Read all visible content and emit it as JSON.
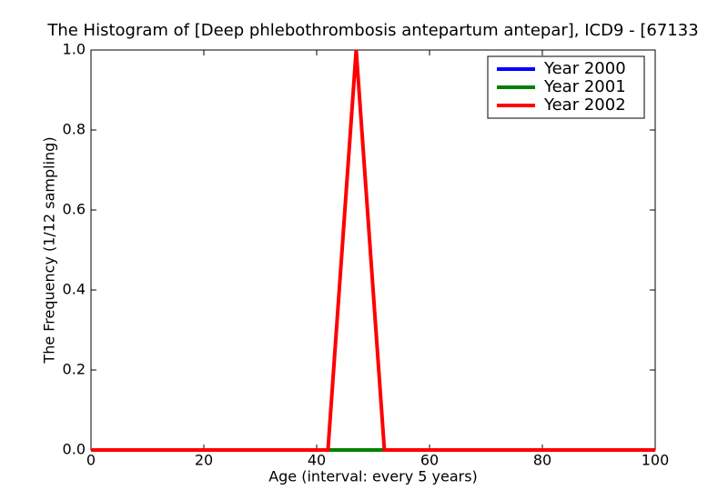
{
  "chart_data": {
    "type": "line",
    "title": "The Histogram of [Deep phlebothrombosis antepartum antepar], ICD9 - [67133",
    "xlabel": "Age (interval: every 5 years)",
    "ylabel": "The Frequency (1/12 sampling)",
    "x": [
      0,
      42,
      47,
      52,
      100
    ],
    "series": [
      {
        "name": "Year 2000",
        "color": "#0000ff",
        "values": [
          0,
          0,
          0,
          0,
          0
        ]
      },
      {
        "name": "Year 2001",
        "color": "#008000",
        "values": [
          0,
          0,
          0,
          0,
          0
        ]
      },
      {
        "name": "Year 2002",
        "color": "#ff0000",
        "values": [
          0,
          0,
          1,
          0,
          0
        ]
      }
    ],
    "xlim": [
      0,
      100
    ],
    "xticks": [
      0,
      20,
      40,
      60,
      80,
      100
    ],
    "ylim": [
      0,
      1
    ],
    "yticks": [
      {
        "value": 0,
        "label": "0.0"
      },
      0.2,
      0.4,
      0.6,
      0.8,
      {
        "value": 1,
        "label": "1.0"
      }
    ],
    "legend": "upper right",
    "grid": false
  }
}
